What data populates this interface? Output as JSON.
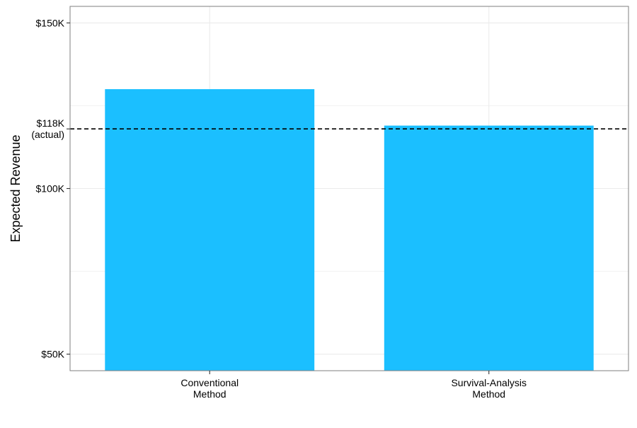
{
  "chart_data": {
    "type": "bar",
    "ylabel": "Expected Revenue",
    "categories": [
      [
        "Conventional",
        "Method"
      ],
      [
        "Survival-Analysis",
        "Method"
      ]
    ],
    "values": [
      130000,
      119000
    ],
    "y_ticks": [
      {
        "value": 50000,
        "lines": [
          "$50K"
        ]
      },
      {
        "value": 100000,
        "lines": [
          "$100K"
        ]
      },
      {
        "value": 118000,
        "lines": [
          "$118K",
          "(actual)"
        ]
      },
      {
        "value": 150000,
        "lines": [
          "$150K"
        ]
      }
    ],
    "reference_line": {
      "value": 118000,
      "style": "dashed"
    },
    "ylim": [
      45000,
      155000
    ],
    "grid": true,
    "bar_color": "#1BBFFF",
    "reference_line_color": "#000000",
    "grid_color": "#EBEBEB",
    "panel_border_color": "#7F7F7F"
  }
}
